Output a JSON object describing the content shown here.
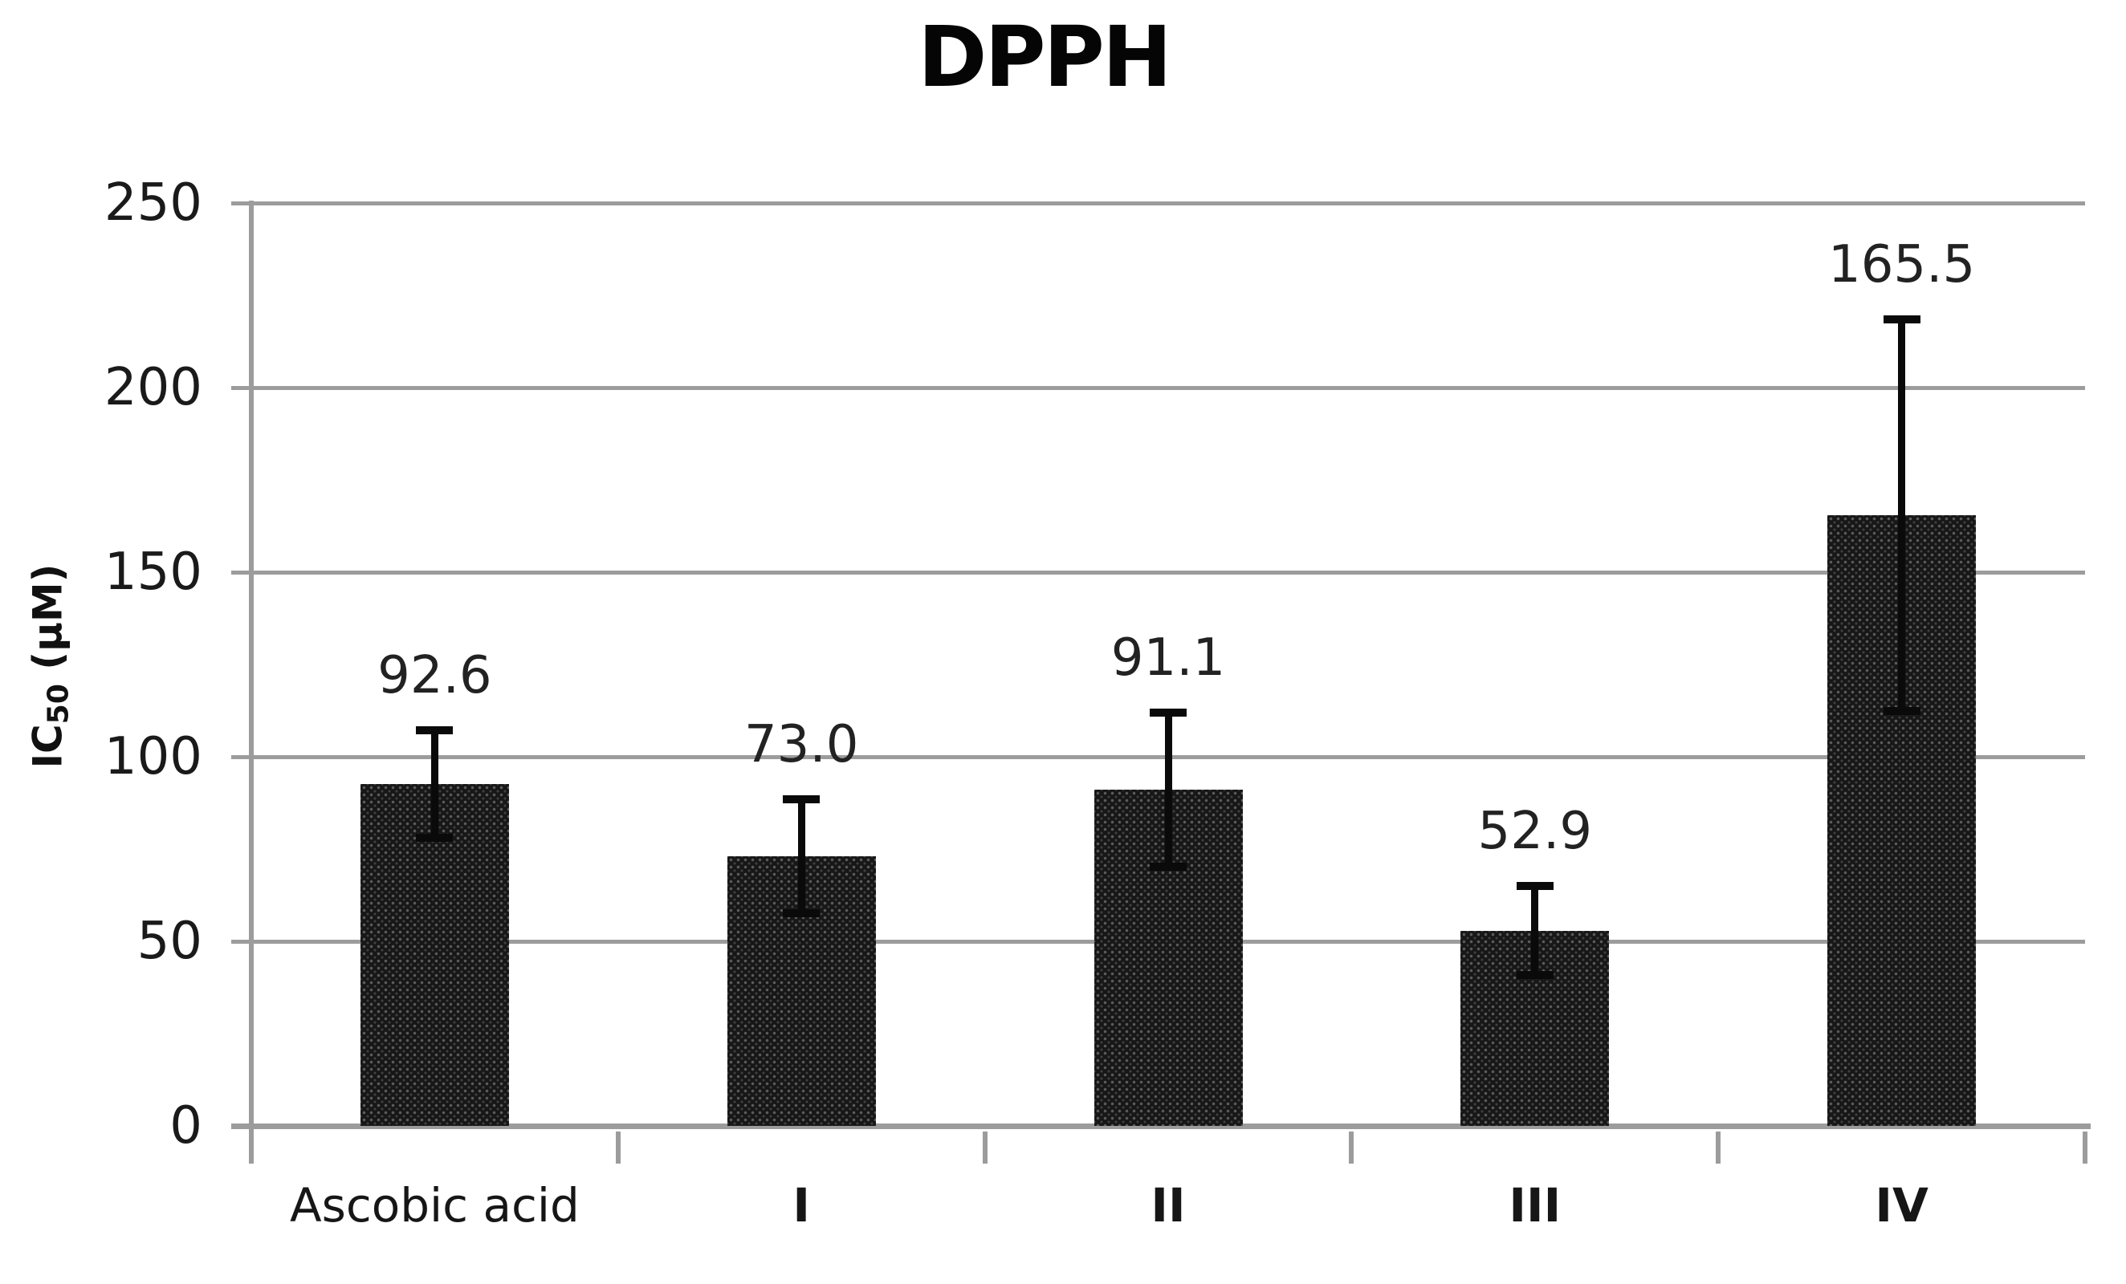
{
  "title": "DPPH",
  "y_axis_title": {
    "pre": "IC",
    "sub": "50",
    "post": " (μM)"
  },
  "chart_data": {
    "type": "bar",
    "title": "DPPH",
    "xlabel": "",
    "ylabel": "IC50 (μM)",
    "categories": [
      "Ascobic acid",
      "I",
      "II",
      "III",
      "IV"
    ],
    "values": [
      92.6,
      73.0,
      91.1,
      52.9,
      165.5
    ],
    "value_labels": [
      "92.6",
      "73.0",
      "91.1",
      "52.9",
      "165.5"
    ],
    "error_bars": [
      14.5,
      15.4,
      20.8,
      12.1,
      53.0
    ],
    "y_ticks": [
      0,
      50,
      100,
      150,
      200,
      250
    ],
    "y_tick_labels": [
      "0",
      "50",
      "100",
      "150",
      "200",
      "250"
    ],
    "ylim": [
      0,
      250
    ],
    "grid": true,
    "legend": "none",
    "bar_color": "#171717",
    "grid_color": "#9c9c9c",
    "error_color": "#0a0a0a",
    "text_color": "#1a1a1a"
  }
}
